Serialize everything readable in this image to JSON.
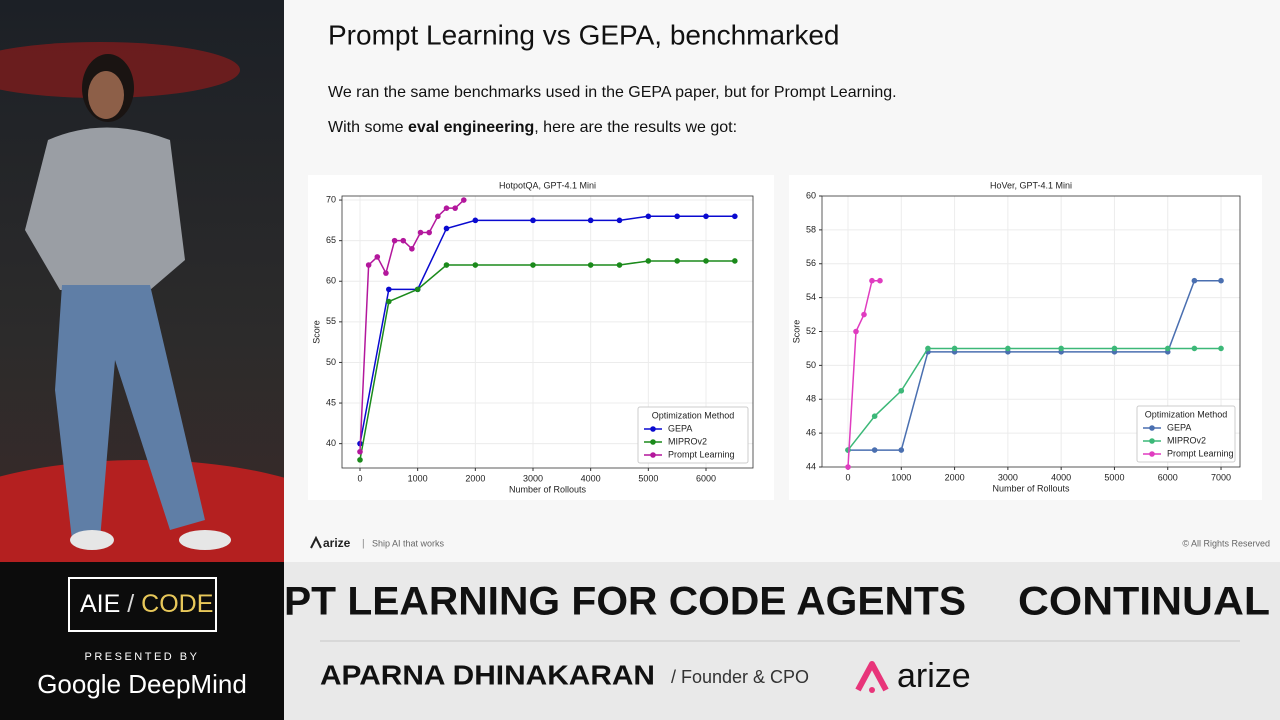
{
  "slide": {
    "title": "Prompt Learning vs GEPA, benchmarked",
    "line1": "We ran the same benchmarks used in the GEPA paper, but for Prompt Learning.",
    "line2_pre": "With some ",
    "line2_bold": "eval engineering",
    "line2_post": ", here are the results we got:",
    "footer_brand": "arize",
    "footer_separator": "|",
    "footer_tagline": "Ship AI that works",
    "copyright": "© All Rights Reserved"
  },
  "chart_data": [
    {
      "type": "line",
      "title": "HotpotQA, GPT-4.1 Mini",
      "x_label": "Number of Rollouts",
      "y_label": "Score",
      "xlim": [
        -312,
        6815
      ],
      "ylim": [
        37,
        70.5
      ],
      "xticks": [
        0,
        1000,
        2000,
        3000,
        4000,
        5000,
        6000
      ],
      "yticks": [
        40,
        45,
        50,
        55,
        60,
        65,
        70
      ],
      "grid": true,
      "legend": "lower right",
      "legend_title": "Optimization Method",
      "series": [
        {
          "name": "GEPA",
          "color": "#0a0ad0",
          "x": [
            0,
            500,
            1000,
            1500,
            2000,
            3000,
            4000,
            4500,
            5000,
            5500,
            6000,
            6500
          ],
          "values": [
            40,
            59,
            59,
            66.5,
            67.5,
            67.5,
            67.5,
            67.5,
            68,
            68,
            68,
            68
          ]
        },
        {
          "name": "MIPROv2",
          "color": "#1b8a1b",
          "x": [
            0,
            500,
            1000,
            1500,
            2000,
            3000,
            4000,
            4500,
            5000,
            5500,
            6000,
            6500
          ],
          "values": [
            38,
            57.5,
            59,
            62,
            62,
            62,
            62,
            62,
            62.5,
            62.5,
            62.5,
            62.5
          ]
        },
        {
          "name": "Prompt Learning",
          "color": "#b3179c",
          "x": [
            0,
            150,
            300,
            450,
            600,
            750,
            900,
            1050,
            1200,
            1350,
            1500,
            1650,
            1800
          ],
          "values": [
            39,
            62,
            63,
            61,
            65,
            65,
            64,
            66,
            66,
            68,
            69,
            69,
            70
          ]
        }
      ]
    },
    {
      "type": "line",
      "title": "HoVer, GPT-4.1 Mini",
      "x_label": "Number of Rollouts",
      "y_label": "Score",
      "xlim": [
        -488,
        7356
      ],
      "ylim": [
        44,
        60
      ],
      "xticks": [
        0,
        1000,
        2000,
        3000,
        4000,
        5000,
        6000,
        7000
      ],
      "yticks": [
        44,
        46,
        48,
        50,
        52,
        54,
        56,
        58,
        60
      ],
      "grid": true,
      "legend": "lower right",
      "legend_title": "Optimization Method",
      "series": [
        {
          "name": "GEPA",
          "color": "#4a6fb0",
          "x": [
            0,
            500,
            1000,
            1500,
            2000,
            3000,
            4000,
            5000,
            6000,
            6500,
            7000
          ],
          "values": [
            45,
            45,
            45,
            50.8,
            50.8,
            50.8,
            50.8,
            50.8,
            50.8,
            55,
            55
          ]
        },
        {
          "name": "MIPROv2",
          "color": "#3cb878",
          "x": [
            0,
            500,
            1000,
            1500,
            2000,
            3000,
            4000,
            5000,
            6000,
            6500,
            7000
          ],
          "values": [
            45,
            47,
            48.5,
            51,
            51,
            51,
            51,
            51,
            51,
            51,
            51
          ]
        },
        {
          "name": "Prompt Learning",
          "color": "#e03cc0",
          "x": [
            0,
            150,
            300,
            450,
            600
          ],
          "values": [
            44,
            52,
            53,
            55,
            55
          ]
        }
      ]
    }
  ],
  "banner": {
    "event_left": "AIE",
    "event_separator": "/",
    "event_right": "CODE",
    "presented_by": "PRESENTED BY",
    "sponsor": "Google DeepMind",
    "ticker_1": "PT LEARNING FOR CODE AGENTS",
    "ticker_2": "CONTINUAL",
    "speaker": "APARNA DHINAKARAN",
    "role": "/ Founder & CPO",
    "company": "arize"
  }
}
